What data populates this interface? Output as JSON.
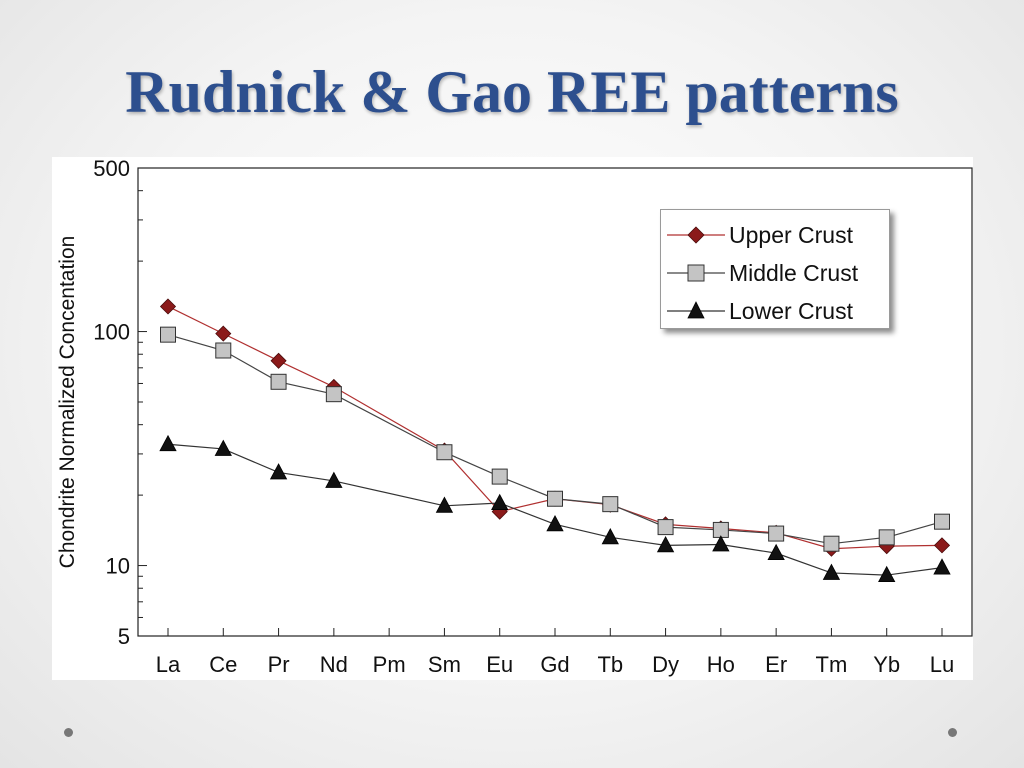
{
  "slide": {
    "title": "Rudnick & Gao REE patterns"
  },
  "chart_data": {
    "type": "line",
    "title": "",
    "xlabel": "",
    "ylabel": "Chondrite Normalized Concentation",
    "yscale": "log",
    "ylim": [
      5,
      500
    ],
    "yticks": [
      5,
      10,
      100,
      500
    ],
    "ytick_labels": [
      "5",
      "10",
      "100",
      "500"
    ],
    "categories": [
      "La",
      "Ce",
      "Pr",
      "Nd",
      "Pm",
      "Sm",
      "Eu",
      "Gd",
      "Tb",
      "Dy",
      "Ho",
      "Er",
      "Tm",
      "Yb",
      "Lu"
    ],
    "series": [
      {
        "name": "Upper Crust",
        "marker": "diamond",
        "color": "#8b1a1a",
        "line_color": "#b03030",
        "values": [
          128,
          98,
          75,
          58,
          null,
          31,
          17,
          19.3,
          18.2,
          15,
          14.4,
          13.8,
          11.8,
          12.1,
          12.2
        ]
      },
      {
        "name": "Middle Crust",
        "marker": "square",
        "color": "#c4c4c4",
        "line_color": "#444444",
        "values": [
          97,
          83,
          61,
          54,
          null,
          30.5,
          24,
          19.3,
          18.3,
          14.6,
          14.2,
          13.7,
          12.4,
          13.2,
          15.4
        ]
      },
      {
        "name": "Lower Crust",
        "marker": "triangle",
        "color": "#111111",
        "line_color": "#333333",
        "values": [
          33,
          31.5,
          25,
          23,
          null,
          18,
          18.5,
          15,
          13.2,
          12.2,
          12.3,
          11.3,
          9.3,
          9.1,
          9.8
        ]
      }
    ],
    "legend_position": "top-right",
    "grid": false
  },
  "legend": {
    "items": [
      {
        "label": "Upper Crust"
      },
      {
        "label": "Middle Crust"
      },
      {
        "label": "Lower Crust"
      }
    ]
  }
}
